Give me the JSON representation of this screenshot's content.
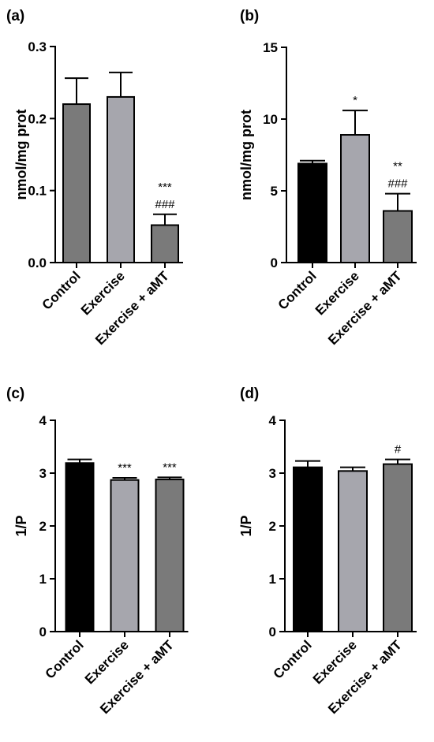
{
  "chart_data": [
    {
      "panel": "(a)",
      "type": "bar",
      "ylabel": "nmol/mg prot",
      "ylim": [
        0,
        0.3
      ],
      "yticks": [
        "0.0",
        "0.1",
        "0.2",
        "0.3"
      ],
      "categories": [
        "Control",
        "Exercise",
        "Exercise + aMT"
      ],
      "values": [
        0.22,
        0.23,
        0.052
      ],
      "errors": [
        0.036,
        0.034,
        0.015
      ],
      "colors": [
        "#7a7a7a",
        "#a6a6ad",
        "#7a7a7a"
      ],
      "annotations": [
        [],
        [],
        [
          "***",
          "###"
        ]
      ]
    },
    {
      "panel": "(b)",
      "type": "bar",
      "ylabel": "nmol/mg prot",
      "ylim": [
        0,
        15
      ],
      "yticks": [
        "0",
        "5",
        "10",
        "15"
      ],
      "categories": [
        "Control",
        "Exercise",
        "Exercise + aMT"
      ],
      "values": [
        6.9,
        8.9,
        3.6
      ],
      "errors": [
        0.2,
        1.7,
        1.2
      ],
      "colors": [
        "#000000",
        "#a6a6ad",
        "#7a7a7a"
      ],
      "annotations": [
        [],
        [
          "*"
        ],
        [
          "**",
          "###"
        ]
      ]
    },
    {
      "panel": "(c)",
      "type": "bar",
      "ylabel": "1/P",
      "ylim": [
        0,
        4
      ],
      "yticks": [
        "0",
        "1",
        "2",
        "3",
        "4"
      ],
      "categories": [
        "Control",
        "Exercise",
        "Exercise + aMT"
      ],
      "values": [
        3.19,
        2.87,
        2.88
      ],
      "errors": [
        0.07,
        0.04,
        0.04
      ],
      "colors": [
        "#000000",
        "#a6a6ad",
        "#7a7a7a"
      ],
      "annotations": [
        [],
        [
          "***"
        ],
        [
          "***"
        ]
      ]
    },
    {
      "panel": "(d)",
      "type": "bar",
      "ylabel": "1/P",
      "ylim": [
        0,
        4
      ],
      "yticks": [
        "0",
        "1",
        "2",
        "3",
        "4"
      ],
      "categories": [
        "Control",
        "Exercise",
        "Exercise + aMT"
      ],
      "values": [
        3.11,
        3.04,
        3.17
      ],
      "errors": [
        0.12,
        0.07,
        0.09
      ],
      "colors": [
        "#000000",
        "#a6a6ad",
        "#7a7a7a"
      ],
      "annotations": [
        [],
        [],
        [
          "#"
        ]
      ]
    }
  ]
}
